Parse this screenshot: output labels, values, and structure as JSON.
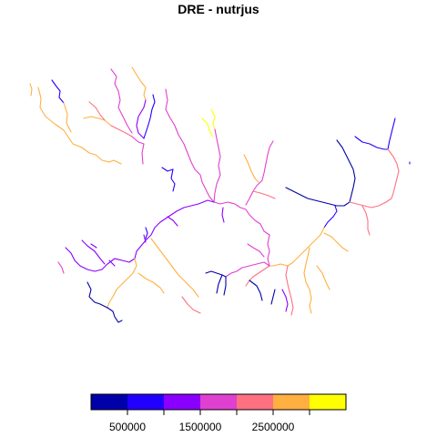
{
  "title": "DRE - nutrjus",
  "legend": {
    "colors": [
      "#0000AA",
      "#2200FF",
      "#8A00FF",
      "#E040D0",
      "#FF7080",
      "#FFB040",
      "#FFFF00"
    ],
    "tick_labels": [
      "500000",
      "1500000",
      "2500000"
    ]
  },
  "line_colors": {
    "c1": "#0000AA",
    "c2": "#2200FF",
    "c3": "#8A00FF",
    "c4": "#E040D0",
    "c5": "#FF7080",
    "c6": "#FFB040",
    "c7": "#FFFF00"
  }
}
